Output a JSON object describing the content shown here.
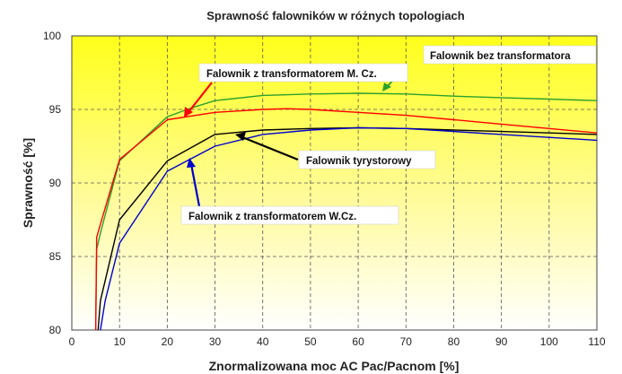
{
  "chart_data": {
    "type": "line",
    "title": "Sprawność falowników w różnych topologiach",
    "xlabel": "Znormalizowana moc AC Pac/Pacnom [%]",
    "ylabel": "Sprawność [%]",
    "xlim": [
      0,
      110
    ],
    "ylim": [
      80,
      100
    ],
    "xticks": [
      "0",
      "10",
      "20",
      "30",
      "40",
      "50",
      "60",
      "70",
      "80",
      "90",
      "100",
      "110"
    ],
    "yticks": [
      "80",
      "85",
      "90",
      "95",
      "100"
    ],
    "grid": "dashed",
    "background": "gradient yellow (top) to white (bottom)",
    "series": [
      {
        "name": "Falownik bez transformatora",
        "color": "#2ca02c",
        "x": [
          5.0,
          5.2,
          6.0,
          10.0,
          20.0,
          25.0,
          30.0,
          40.0,
          50.0,
          60.0,
          70.0,
          80.0,
          90.0,
          100.0,
          110.0
        ],
        "y": [
          80.0,
          85.5,
          86.6,
          91.5,
          94.5,
          95.1,
          95.6,
          95.95,
          96.05,
          96.1,
          96.05,
          95.9,
          95.8,
          95.7,
          95.6
        ]
      },
      {
        "name": "Falownik z transformatorem M. Cz.",
        "color": "#ff0000",
        "x": [
          5.0,
          5.2,
          6.0,
          10.0,
          20.0,
          30.0,
          40.0,
          45.0,
          50.0,
          60.0,
          70.0,
          80.0,
          90.0,
          100.0,
          110.0
        ],
        "y": [
          80.0,
          86.3,
          87.2,
          91.6,
          94.3,
          94.8,
          95.0,
          95.05,
          95.0,
          94.8,
          94.6,
          94.3,
          94.0,
          93.7,
          93.4
        ]
      },
      {
        "name": "Falownik tyrystorowy",
        "color": "#000000",
        "x": [
          5.5,
          6.0,
          10.0,
          20.0,
          30.0,
          40.0,
          50.0,
          60.0,
          70.0,
          80.0,
          90.0,
          100.0,
          110.0
        ],
        "y": [
          80.0,
          82.0,
          87.5,
          91.5,
          93.3,
          93.6,
          93.7,
          93.75,
          93.7,
          93.6,
          93.5,
          93.4,
          93.3
        ]
      },
      {
        "name": "Falownik z transformatorem W.Cz.",
        "color": "#0000cc",
        "x": [
          6.0,
          7.0,
          10.0,
          20.0,
          30.0,
          40.0,
          50.0,
          60.0,
          70.0,
          80.0,
          90.0,
          100.0,
          110.0
        ],
        "y": [
          80.0,
          82.0,
          85.9,
          90.8,
          92.5,
          93.3,
          93.6,
          93.75,
          93.7,
          93.5,
          93.3,
          93.1,
          92.9
        ]
      }
    ],
    "annotations": [
      "Falownik bez transformatora",
      "Falownik z transformatorem M. Cz.",
      "Falownik tyrystorowy",
      "Falownik z transformatorem W.Cz."
    ]
  }
}
